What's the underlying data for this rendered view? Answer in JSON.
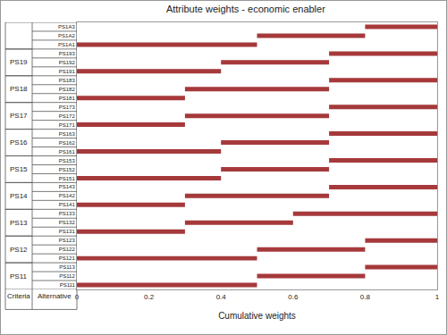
{
  "chart_data": {
    "type": "bar",
    "orientation": "horizontal",
    "title": "Attribute weights - economic enabler",
    "x_label": "Cumulative weights",
    "table_headers": [
      "Criteria",
      "Alternative"
    ],
    "categories": [
      "PS111",
      "PS112",
      "PS113",
      "PS121",
      "PS122",
      "PS123",
      "PS131",
      "PS132",
      "PS133",
      "PS141",
      "PS142",
      "PS143",
      "PS151",
      "PS152",
      "PS153",
      "PS161",
      "PS162",
      "PS163",
      "PS171",
      "PS172",
      "PS173",
      "PS181",
      "PS182",
      "PS183",
      "PS191",
      "PS192",
      "PS193",
      "PS1A1",
      "PS1A2",
      "PS1A3"
    ],
    "base": [
      0,
      0.5,
      0.8,
      0,
      0.5,
      0.8,
      0,
      0.3,
      0.6,
      0,
      0.3,
      0.7,
      0,
      0.4,
      0.7,
      0,
      0.4,
      0.7,
      0,
      0.3,
      0.7,
      0,
      0.3,
      0.7,
      0,
      0.4,
      0.7,
      0,
      0.5,
      0.8
    ],
    "values": [
      0.5,
      0.3,
      0.2,
      0.5,
      0.3,
      0.2,
      0.3,
      0.3,
      0.4,
      0.3,
      0.4,
      0.3,
      0.4,
      0.3,
      0.3,
      0.4,
      0.3,
      0.3,
      0.3,
      0.4,
      0.3,
      0.3,
      0.4,
      0.3,
      0.4,
      0.3,
      0.3,
      0.5,
      0.3,
      0.2
    ],
    "groups": [
      {
        "name": "PS11",
        "members": [
          "PS111",
          "PS112",
          "PS113"
        ]
      },
      {
        "name": "PS12",
        "members": [
          "PS121",
          "PS122",
          "PS123"
        ]
      },
      {
        "name": "PS13",
        "members": [
          "PS131",
          "PS132",
          "PS133"
        ]
      },
      {
        "name": "PS14",
        "members": [
          "PS141",
          "PS142",
          "PS143"
        ]
      },
      {
        "name": "PS15",
        "members": [
          "PS151",
          "PS152",
          "PS153"
        ]
      },
      {
        "name": "PS16",
        "members": [
          "PS161",
          "PS162",
          "PS163"
        ]
      },
      {
        "name": "PS17",
        "members": [
          "PS171",
          "PS172",
          "PS173"
        ]
      },
      {
        "name": "PS18",
        "members": [
          "PS181",
          "PS182",
          "PS183"
        ]
      },
      {
        "name": "PS19",
        "members": [
          "PS191",
          "PS192",
          "PS193"
        ]
      },
      {
        "name": null,
        "members": [
          "PS1A1",
          "PS1A2",
          "PS1A3"
        ]
      }
    ],
    "color": "#a5393b",
    "xlim": [
      0,
      1
    ],
    "xticks": [
      0,
      0.2,
      0.4,
      0.6,
      0.8,
      1
    ],
    "grid": false
  }
}
